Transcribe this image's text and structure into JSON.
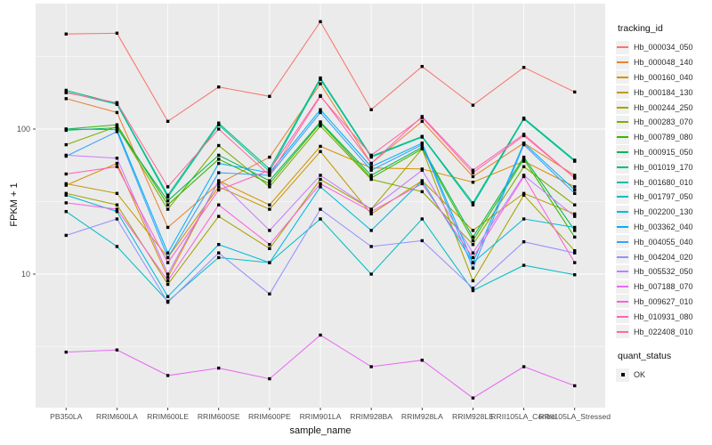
{
  "axes": {
    "x_title": "sample_name",
    "y_title": "FPKM + 1",
    "y_tick_labels": [
      "100",
      "10"
    ]
  },
  "legend": {
    "tracking_title": "tracking_id",
    "quant_title": "quant_status",
    "quant_items": [
      {
        "label": "OK",
        "marker": "black-square"
      }
    ]
  },
  "style_colors": {
    "panel_background": "#EBEBEB",
    "gridline": "#FFFFFF",
    "tick": "#333333",
    "tick_label": "#4D4D4D",
    "point": "#000000",
    "legend_key_background": "#F0F0F0"
  },
  "chart_data": {
    "type": "line",
    "title": "",
    "xlabel": "sample_name",
    "ylabel": "FPKM + 1",
    "x_type": "categorical",
    "y_scale": "log10",
    "y_major_ticks": [
      10,
      100
    ],
    "y_minor_gridlines": [
      3.162,
      31.62,
      316.2
    ],
    "grid": "white-on-gray",
    "legend_position": "right",
    "point_marker": {
      "shape": "square",
      "color": "#000000",
      "meaning": "quant_status = OK"
    },
    "categories": [
      "PB350LA",
      "RRIM600LA",
      "RRIM600LE",
      "RRIM600SE",
      "RRIM600PE",
      "RRIM901LA",
      "RRIM928BA",
      "RRIM928LA",
      "RRIM928LE",
      "RRII105LA_Control",
      "RRII105LA_Stressed"
    ],
    "series": [
      {
        "name": "Hb_000034_050",
        "color": "#F8766D",
        "values": [
          452,
          458,
          113,
          195,
          168,
          550,
          136,
          270,
          146,
          266,
          180
        ]
      },
      {
        "name": "Hb_000048_140",
        "color": "#EA8331",
        "values": [
          162,
          130,
          21,
          42,
          64,
          205,
          58,
          113,
          47,
          80,
          48
        ]
      },
      {
        "name": "Hb_000160_040",
        "color": "#D89000",
        "values": [
          41,
          58,
          9.5,
          44,
          30,
          76,
          54,
          53,
          43,
          60,
          40
        ]
      },
      {
        "name": "Hb_000184_130",
        "color": "#C09B00",
        "values": [
          42,
          36,
          13,
          40,
          28,
          70,
          26,
          44,
          20,
          36,
          26
        ]
      },
      {
        "name": "Hb_000244_250",
        "color": "#A3A500",
        "values": [
          36,
          30,
          8.5,
          25,
          15,
          45,
          28,
          73,
          9,
          35,
          14.5
        ]
      },
      {
        "name": "Hb_000283_070",
        "color": "#7CAE00",
        "values": [
          78,
          104,
          28,
          77,
          40,
          105,
          45,
          37,
          16,
          55,
          30
        ]
      },
      {
        "name": "Hb_000789_080",
        "color": "#39B600",
        "values": [
          100,
          107,
          30,
          62,
          42,
          110,
          46,
          73,
          17,
          62,
          18
        ]
      },
      {
        "name": "Hb_000915_050",
        "color": "#00BB4E",
        "values": [
          98,
          102,
          32,
          66,
          44,
          112,
          48,
          75,
          18,
          64,
          20
        ]
      },
      {
        "name": "Hb_001019_170",
        "color": "#00BF7D",
        "values": [
          185,
          150,
          35,
          110,
          53,
          225,
          65,
          89,
          31,
          119,
          61
        ]
      },
      {
        "name": "Hb_001680_010",
        "color": "#00C1A3",
        "values": [
          180,
          148,
          34,
          107,
          51,
          220,
          64,
          88,
          30,
          117,
          60
        ]
      },
      {
        "name": "Hb_001797_050",
        "color": "#00BFC4",
        "values": [
          27,
          15.5,
          6.5,
          13,
          12,
          24,
          10,
          24,
          7.7,
          11.5,
          9.9
        ]
      },
      {
        "name": "Hb_002200_130",
        "color": "#00BAE0",
        "values": [
          35,
          27,
          7,
          16,
          12,
          40,
          20,
          44,
          12,
          24,
          21
        ]
      },
      {
        "name": "Hb_003362_040",
        "color": "#00B0F6",
        "values": [
          100,
          99,
          14,
          58,
          50,
          136,
          55,
          80,
          12,
          80,
          38
        ]
      },
      {
        "name": "Hb_004055_040",
        "color": "#35A2FF",
        "values": [
          65,
          96,
          13,
          50,
          48,
          130,
          52,
          78,
          11,
          78,
          36
        ]
      },
      {
        "name": "Hb_004204_020",
        "color": "#9590FF",
        "values": [
          18.5,
          24,
          6.4,
          14,
          7.3,
          28,
          15.5,
          17,
          8,
          16.7,
          14
        ]
      },
      {
        "name": "Hb_005532_050",
        "color": "#C77CFF",
        "values": [
          66,
          63,
          10,
          44,
          20,
          48,
          28,
          52,
          14,
          48,
          25
        ]
      },
      {
        "name": "Hb_007188_070",
        "color": "#E76BF3",
        "values": [
          2.9,
          3.0,
          2.0,
          2.25,
          1.9,
          3.8,
          2.3,
          2.55,
          1.4,
          2.3,
          1.7
        ]
      },
      {
        "name": "Hb_009627_010",
        "color": "#FA62DB",
        "values": [
          31,
          28,
          9,
          30,
          16,
          42,
          27,
          42,
          13,
          47,
          12
        ]
      },
      {
        "name": "Hb_010931_080",
        "color": "#FF62BC",
        "values": [
          49,
          55,
          12,
          38,
          52,
          170,
          58,
          122,
          52,
          92,
          46
        ]
      },
      {
        "name": "Hb_022408_010",
        "color": "#FF6A98",
        "values": [
          178,
          152,
          40,
          100,
          48,
          168,
          66,
          120,
          50,
          90,
          46
        ]
      }
    ]
  }
}
